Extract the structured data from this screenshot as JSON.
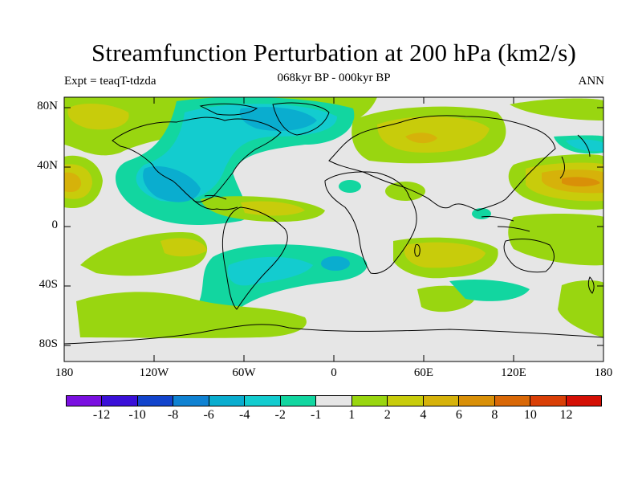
{
  "header": {
    "title": "Streamfunction Perturbation at 200 hPa (km2/s)",
    "subtitle": "068kyr BP - 000kyr BP",
    "left_label": "Expt = teaqT-tdzda",
    "right_label": "ANN"
  },
  "axes": {
    "lat_ticks": [
      "80N",
      "40N",
      "0",
      "40S",
      "80S"
    ],
    "lon_ticks": [
      "180",
      "120W",
      "60W",
      "0",
      "60E",
      "120E",
      "180"
    ]
  },
  "colorbar": {
    "colors": [
      "#7a10e0",
      "#3a10d8",
      "#1244cc",
      "#0f82d2",
      "#0aadcf",
      "#13cccf",
      "#12d6a0",
      "#e6e6e6",
      "#99d610",
      "#c8cc0b",
      "#d6b20a",
      "#d99008",
      "#d96807",
      "#d93f06",
      "#d40f05"
    ],
    "labels": [
      "-12",
      "-10",
      "-8",
      "-6",
      "-4",
      "-2",
      "-1",
      "1",
      "2",
      "4",
      "6",
      "8",
      "10",
      "12"
    ]
  },
  "map_colors": {
    "neutral": "#e6e6e6",
    "green": "#99d610",
    "yellow": "#c8cc0b",
    "orange": "#d99008",
    "teal": "#12d6a0",
    "cyan": "#13cccf",
    "lightblue": "#0aadcf",
    "blue": "#0f82d2",
    "coast": "#000000"
  }
}
